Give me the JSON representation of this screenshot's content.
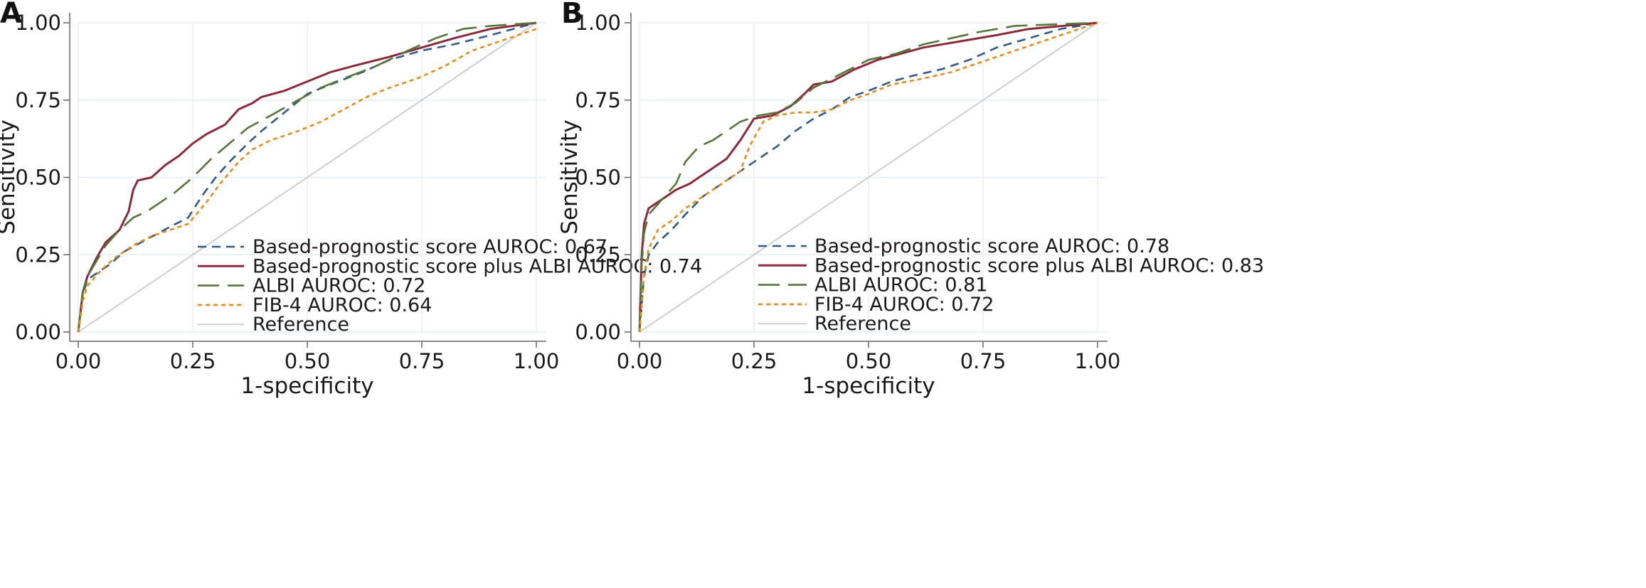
{
  "colors": {
    "based": "#2f5a8c",
    "plus_albi": "#8b2a3a",
    "albi": "#56763a",
    "fib4": "#e8891a",
    "reference": "#cfcfcf",
    "grid": "#e7eef2",
    "axis": "#666666"
  },
  "chart_data": [
    {
      "panel": "A",
      "type": "line",
      "xlabel": "1-specificity",
      "ylabel": "Sensitivity",
      "xlim": [
        0,
        1
      ],
      "ylim": [
        0,
        1
      ],
      "xticks": [
        "0.00",
        "0.25",
        "0.50",
        "0.75",
        "1.00"
      ],
      "yticks": [
        "0.00",
        "0.25",
        "0.50",
        "0.75",
        "1.00"
      ],
      "grid": true,
      "legend_position": "bottom-right",
      "series": [
        {
          "key": "based",
          "name": "Based-prognostic score AUROC: 0.67",
          "style": "short-dash",
          "points": [
            [
              0,
              0
            ],
            [
              0.01,
              0.12
            ],
            [
              0.02,
              0.17
            ],
            [
              0.04,
              0.19
            ],
            [
              0.07,
              0.22
            ],
            [
              0.1,
              0.26
            ],
            [
              0.15,
              0.3
            ],
            [
              0.2,
              0.34
            ],
            [
              0.24,
              0.37
            ],
            [
              0.27,
              0.44
            ],
            [
              0.3,
              0.5
            ],
            [
              0.33,
              0.55
            ],
            [
              0.37,
              0.61
            ],
            [
              0.4,
              0.65
            ],
            [
              0.45,
              0.71
            ],
            [
              0.5,
              0.77
            ],
            [
              0.55,
              0.8
            ],
            [
              0.62,
              0.84
            ],
            [
              0.68,
              0.88
            ],
            [
              0.75,
              0.91
            ],
            [
              0.82,
              0.93
            ],
            [
              0.9,
              0.96
            ],
            [
              1,
              1
            ]
          ]
        },
        {
          "key": "plus_albi",
          "name": "Based-prognostic score plus ALBI AUROC: 0.74",
          "style": "solid",
          "points": [
            [
              0,
              0
            ],
            [
              0.01,
              0.13
            ],
            [
              0.02,
              0.18
            ],
            [
              0.04,
              0.24
            ],
            [
              0.06,
              0.29
            ],
            [
              0.09,
              0.33
            ],
            [
              0.11,
              0.39
            ],
            [
              0.12,
              0.46
            ],
            [
              0.13,
              0.49
            ],
            [
              0.16,
              0.5
            ],
            [
              0.19,
              0.54
            ],
            [
              0.22,
              0.57
            ],
            [
              0.25,
              0.61
            ],
            [
              0.28,
              0.64
            ],
            [
              0.32,
              0.67
            ],
            [
              0.35,
              0.72
            ],
            [
              0.38,
              0.74
            ],
            [
              0.4,
              0.76
            ],
            [
              0.45,
              0.78
            ],
            [
              0.5,
              0.81
            ],
            [
              0.55,
              0.84
            ],
            [
              0.6,
              0.86
            ],
            [
              0.68,
              0.89
            ],
            [
              0.75,
              0.92
            ],
            [
              0.82,
              0.95
            ],
            [
              0.9,
              0.98
            ],
            [
              1,
              1
            ]
          ]
        },
        {
          "key": "albi",
          "name": "ALBI AUROC: 0.72",
          "style": "long-dash",
          "points": [
            [
              0,
              0
            ],
            [
              0.01,
              0.13
            ],
            [
              0.02,
              0.18
            ],
            [
              0.04,
              0.23
            ],
            [
              0.06,
              0.28
            ],
            [
              0.09,
              0.33
            ],
            [
              0.12,
              0.37
            ],
            [
              0.15,
              0.39
            ],
            [
              0.18,
              0.42
            ],
            [
              0.21,
              0.45
            ],
            [
              0.25,
              0.5
            ],
            [
              0.29,
              0.56
            ],
            [
              0.33,
              0.61
            ],
            [
              0.37,
              0.66
            ],
            [
              0.42,
              0.7
            ],
            [
              0.48,
              0.75
            ],
            [
              0.53,
              0.79
            ],
            [
              0.58,
              0.82
            ],
            [
              0.65,
              0.86
            ],
            [
              0.72,
              0.91
            ],
            [
              0.78,
              0.95
            ],
            [
              0.84,
              0.98
            ],
            [
              0.9,
              0.99
            ],
            [
              1,
              1
            ]
          ]
        },
        {
          "key": "fib4",
          "name": "FIB-4 AUROC: 0.64",
          "style": "dotted",
          "points": [
            [
              0,
              0
            ],
            [
              0.01,
              0.1
            ],
            [
              0.02,
              0.15
            ],
            [
              0.05,
              0.2
            ],
            [
              0.08,
              0.24
            ],
            [
              0.12,
              0.28
            ],
            [
              0.16,
              0.31
            ],
            [
              0.2,
              0.33
            ],
            [
              0.24,
              0.35
            ],
            [
              0.28,
              0.42
            ],
            [
              0.31,
              0.48
            ],
            [
              0.35,
              0.55
            ],
            [
              0.38,
              0.59
            ],
            [
              0.42,
              0.62
            ],
            [
              0.48,
              0.65
            ],
            [
              0.53,
              0.68
            ],
            [
              0.58,
              0.72
            ],
            [
              0.63,
              0.76
            ],
            [
              0.68,
              0.79
            ],
            [
              0.74,
              0.82
            ],
            [
              0.8,
              0.86
            ],
            [
              0.86,
              0.91
            ],
            [
              0.92,
              0.94
            ],
            [
              1,
              0.98
            ]
          ]
        },
        {
          "key": "reference",
          "name": "Reference",
          "style": "reference",
          "points": [
            [
              0,
              0
            ],
            [
              1,
              1
            ]
          ]
        }
      ]
    },
    {
      "panel": "B",
      "type": "line",
      "xlabel": "1-specificity",
      "ylabel": "Sensitivity",
      "xlim": [
        0,
        1
      ],
      "ylim": [
        0,
        1
      ],
      "xticks": [
        "0.00",
        "0.25",
        "0.50",
        "0.75",
        "1.00"
      ],
      "yticks": [
        "0.00",
        "0.25",
        "0.50",
        "0.75",
        "1.00"
      ],
      "grid": true,
      "legend_position": "bottom-right",
      "series": [
        {
          "key": "based",
          "name": "Based-prognostic score AUROC: 0.78",
          "style": "short-dash",
          "points": [
            [
              0,
              0
            ],
            [
              0.01,
              0.18
            ],
            [
              0.02,
              0.25
            ],
            [
              0.04,
              0.29
            ],
            [
              0.07,
              0.33
            ],
            [
              0.1,
              0.38
            ],
            [
              0.14,
              0.44
            ],
            [
              0.18,
              0.48
            ],
            [
              0.22,
              0.52
            ],
            [
              0.26,
              0.56
            ],
            [
              0.3,
              0.6
            ],
            [
              0.34,
              0.65
            ],
            [
              0.38,
              0.69
            ],
            [
              0.42,
              0.72
            ],
            [
              0.46,
              0.76
            ],
            [
              0.5,
              0.78
            ],
            [
              0.55,
              0.81
            ],
            [
              0.6,
              0.83
            ],
            [
              0.66,
              0.85
            ],
            [
              0.72,
              0.88
            ],
            [
              0.78,
              0.92
            ],
            [
              0.85,
              0.95
            ],
            [
              0.92,
              0.98
            ],
            [
              1,
              1
            ]
          ]
        },
        {
          "key": "plus_albi",
          "name": "Based-prognostic score plus ALBI AUROC: 0.83",
          "style": "solid",
          "points": [
            [
              0,
              0
            ],
            [
              0.005,
              0.25
            ],
            [
              0.01,
              0.35
            ],
            [
              0.02,
              0.4
            ],
            [
              0.05,
              0.43
            ],
            [
              0.08,
              0.46
            ],
            [
              0.11,
              0.48
            ],
            [
              0.15,
              0.52
            ],
            [
              0.19,
              0.56
            ],
            [
              0.22,
              0.62
            ],
            [
              0.25,
              0.69
            ],
            [
              0.29,
              0.7
            ],
            [
              0.33,
              0.73
            ],
            [
              0.36,
              0.77
            ],
            [
              0.38,
              0.8
            ],
            [
              0.42,
              0.81
            ],
            [
              0.47,
              0.85
            ],
            [
              0.52,
              0.88
            ],
            [
              0.57,
              0.9
            ],
            [
              0.62,
              0.92
            ],
            [
              0.7,
              0.94
            ],
            [
              0.78,
              0.96
            ],
            [
              0.85,
              0.98
            ],
            [
              1,
              1
            ]
          ]
        },
        {
          "key": "albi",
          "name": "ALBI AUROC: 0.81",
          "style": "long-dash",
          "points": [
            [
              0,
              0
            ],
            [
              0.005,
              0.22
            ],
            [
              0.01,
              0.32
            ],
            [
              0.02,
              0.38
            ],
            [
              0.05,
              0.43
            ],
            [
              0.08,
              0.48
            ],
            [
              0.1,
              0.55
            ],
            [
              0.13,
              0.6
            ],
            [
              0.16,
              0.62
            ],
            [
              0.19,
              0.65
            ],
            [
              0.22,
              0.68
            ],
            [
              0.26,
              0.7
            ],
            [
              0.3,
              0.71
            ],
            [
              0.34,
              0.74
            ],
            [
              0.38,
              0.79
            ],
            [
              0.42,
              0.82
            ],
            [
              0.46,
              0.85
            ],
            [
              0.5,
              0.88
            ],
            [
              0.56,
              0.9
            ],
            [
              0.62,
              0.93
            ],
            [
              0.68,
              0.95
            ],
            [
              0.74,
              0.97
            ],
            [
              0.82,
              0.99
            ],
            [
              1,
              1
            ]
          ]
        },
        {
          "key": "fib4",
          "name": "FIB-4 AUROC: 0.72",
          "style": "dotted",
          "points": [
            [
              0,
              0
            ],
            [
              0.01,
              0.18
            ],
            [
              0.02,
              0.27
            ],
            [
              0.04,
              0.33
            ],
            [
              0.07,
              0.36
            ],
            [
              0.1,
              0.4
            ],
            [
              0.14,
              0.44
            ],
            [
              0.18,
              0.48
            ],
            [
              0.22,
              0.52
            ],
            [
              0.24,
              0.6
            ],
            [
              0.27,
              0.68
            ],
            [
              0.3,
              0.7
            ],
            [
              0.34,
              0.71
            ],
            [
              0.38,
              0.71
            ],
            [
              0.42,
              0.72
            ],
            [
              0.46,
              0.75
            ],
            [
              0.5,
              0.77
            ],
            [
              0.55,
              0.8
            ],
            [
              0.62,
              0.82
            ],
            [
              0.68,
              0.84
            ],
            [
              0.74,
              0.87
            ],
            [
              0.8,
              0.9
            ],
            [
              0.86,
              0.93
            ],
            [
              0.92,
              0.96
            ],
            [
              1,
              1
            ]
          ]
        },
        {
          "key": "reference",
          "name": "Reference",
          "style": "reference",
          "points": [
            [
              0,
              0
            ],
            [
              1,
              1
            ]
          ]
        }
      ]
    }
  ]
}
